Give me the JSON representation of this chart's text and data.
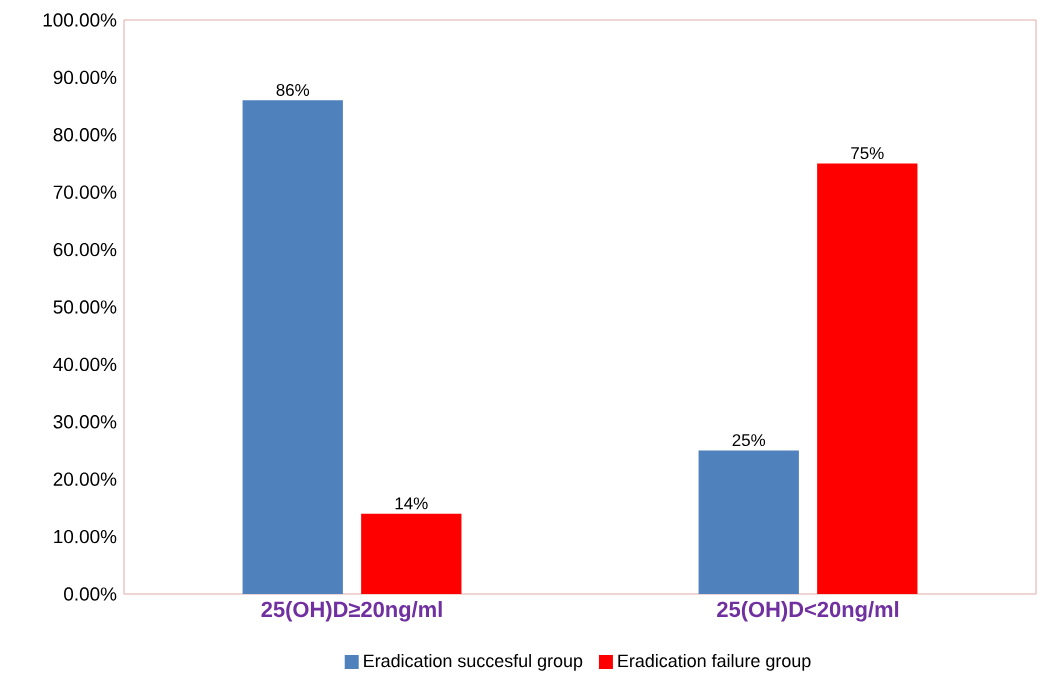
{
  "chart_data": {
    "type": "bar",
    "categories": [
      "25(OH)D≥20ng/ml",
      "25(OH)D<20ng/ml"
    ],
    "series": [
      {
        "name": "Eradication succesful group",
        "color": "#4f81bd",
        "values": [
          86,
          25
        ],
        "value_labels": [
          "86%",
          "25%"
        ]
      },
      {
        "name": "Eradication failure group",
        "color": "#ff0000",
        "values": [
          14,
          75
        ],
        "value_labels": [
          "14%",
          "75%"
        ]
      }
    ],
    "ylim": [
      0,
      100
    ],
    "yticks": [
      {
        "value": 0,
        "label": "0.00%"
      },
      {
        "value": 10,
        "label": "10.00%"
      },
      {
        "value": 20,
        "label": "20.00%"
      },
      {
        "value": 30,
        "label": "30.00%"
      },
      {
        "value": 40,
        "label": "40.00%"
      },
      {
        "value": 50,
        "label": "50.00%"
      },
      {
        "value": 60,
        "label": "60.00%"
      },
      {
        "value": 70,
        "label": "70.00%"
      },
      {
        "value": 80,
        "label": "80.00%"
      },
      {
        "value": 90,
        "label": "90.00%"
      },
      {
        "value": 100,
        "label": "100.00%"
      }
    ],
    "legend": "bottom"
  }
}
